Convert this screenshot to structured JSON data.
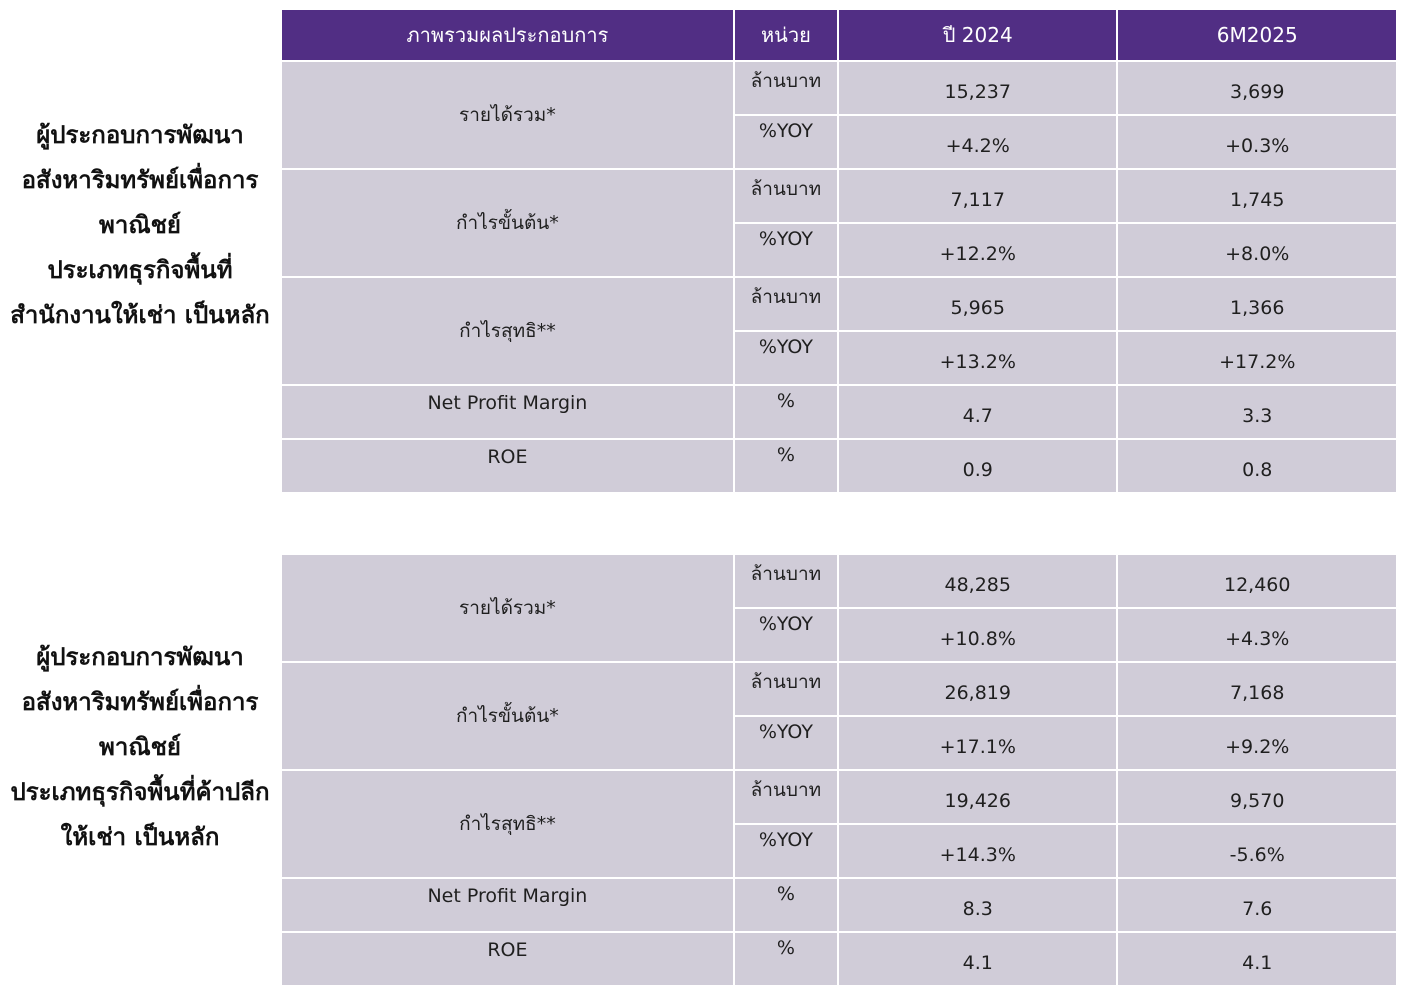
{
  "colors": {
    "header_bg": "#512e84",
    "header_text": "#ffffff",
    "cell_bg": "#d0ccd8",
    "page_bg": "#ffffff"
  },
  "header": {
    "col_overview": "ภาพรวมผลประกอบการ",
    "col_unit": "หน่วย",
    "col_year": "ปี 2024",
    "col_period": "6M2025"
  },
  "segments": [
    {
      "label_lines": [
        "ผู้ประกอบการพัฒนา",
        "อสังหาริมทรัพย์เพื่อการ",
        "พาณิชย์",
        "ประเภทธุรกิจพื้นที่",
        "สำนักงานให้เช่า เป็นหลัก"
      ],
      "metrics": [
        {
          "name": "รายได้รวม*",
          "rows": [
            {
              "unit": "ล้านบาท",
              "y2024": "15,237",
              "m6_2025": "3,699"
            },
            {
              "unit": "%YOY",
              "y2024": "+4.2%",
              "m6_2025": "+0.3%"
            }
          ]
        },
        {
          "name": "กำไรขั้นต้น*",
          "rows": [
            {
              "unit": "ล้านบาท",
              "y2024": "7,117",
              "m6_2025": "1,745"
            },
            {
              "unit": "%YOY",
              "y2024": "+12.2%",
              "m6_2025": "+8.0%"
            }
          ]
        },
        {
          "name": "กำไรสุทธิ**",
          "rows": [
            {
              "unit": "ล้านบาท",
              "y2024": "5,965",
              "m6_2025": "1,366"
            },
            {
              "unit": "%YOY",
              "y2024": "+13.2%",
              "m6_2025": "+17.2%"
            }
          ]
        }
      ],
      "ratios": [
        {
          "name": "Net Profit Margin",
          "unit": "%",
          "y2024": "4.7",
          "m6_2025": "3.3"
        },
        {
          "name": "ROE",
          "unit": "%",
          "y2024": "0.9",
          "m6_2025": "0.8"
        }
      ]
    },
    {
      "label_lines": [
        "ผู้ประกอบการพัฒนา",
        "อสังหาริมทรัพย์เพื่อการ",
        "พาณิชย์",
        "ประเภทธุรกิจพื้นที่ค้าปลีก",
        "ให้เช่า เป็นหลัก"
      ],
      "metrics": [
        {
          "name": "รายได้รวม*",
          "rows": [
            {
              "unit": "ล้านบาท",
              "y2024": "48,285",
              "m6_2025": "12,460"
            },
            {
              "unit": "%YOY",
              "y2024": "+10.8%",
              "m6_2025": "+4.3%"
            }
          ]
        },
        {
          "name": "กำไรขั้นต้น*",
          "rows": [
            {
              "unit": "ล้านบาท",
              "y2024": "26,819",
              "m6_2025": "7,168"
            },
            {
              "unit": "%YOY",
              "y2024": "+17.1%",
              "m6_2025": "+9.2%"
            }
          ]
        },
        {
          "name": "กำไรสุทธิ**",
          "rows": [
            {
              "unit": "ล้านบาท",
              "y2024": "19,426",
              "m6_2025": "9,570"
            },
            {
              "unit": "%YOY",
              "y2024": "+14.3%",
              "m6_2025": "-5.6%"
            }
          ]
        }
      ],
      "ratios": [
        {
          "name": "Net Profit Margin",
          "unit": "%",
          "y2024": "8.3",
          "m6_2025": "7.6"
        },
        {
          "name": "ROE",
          "unit": "%",
          "y2024": "4.1",
          "m6_2025": "4.1"
        }
      ]
    }
  ]
}
